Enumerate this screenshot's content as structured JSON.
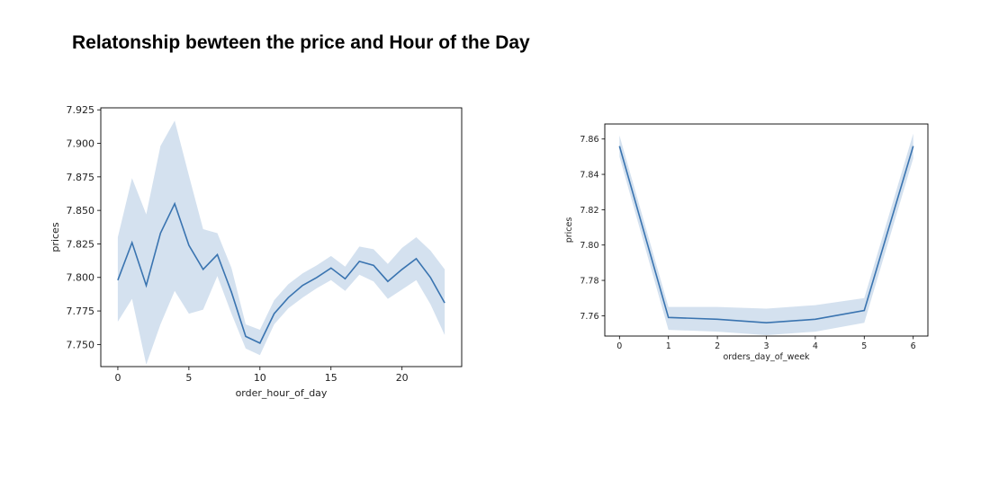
{
  "title": "Relatonship bewteen the price and Hour of the Day",
  "colors": {
    "line": "#3a74b0",
    "band": "#b7cde5"
  },
  "chart_data": [
    {
      "type": "line",
      "xlabel": "order_hour_of_day",
      "ylabel": "prices",
      "xlim": [
        -1.2,
        24.2
      ],
      "ylim": [
        7.7335,
        7.9265
      ],
      "xticks": [
        0,
        5,
        10,
        15,
        20
      ],
      "yticks": [
        7.75,
        7.775,
        7.8,
        7.825,
        7.85,
        7.875,
        7.9,
        7.925
      ],
      "ytick_labels": [
        "7.750",
        "7.775",
        "7.800",
        "7.825",
        "7.850",
        "7.875",
        "7.900",
        "7.925"
      ],
      "grid": false,
      "x": [
        0,
        1,
        2,
        3,
        4,
        5,
        6,
        7,
        8,
        9,
        10,
        11,
        12,
        13,
        14,
        15,
        16,
        17,
        18,
        19,
        20,
        21,
        22,
        23
      ],
      "y": [
        7.798,
        7.826,
        7.794,
        7.833,
        7.855,
        7.824,
        7.806,
        7.817,
        7.789,
        7.756,
        7.751,
        7.773,
        7.785,
        7.794,
        7.8,
        7.807,
        7.799,
        7.812,
        7.809,
        7.797,
        7.806,
        7.814,
        7.8,
        7.781
      ],
      "ci_upper": [
        7.83,
        7.874,
        7.847,
        7.898,
        7.917,
        7.876,
        7.836,
        7.833,
        7.807,
        7.765,
        7.761,
        7.783,
        7.795,
        7.803,
        7.809,
        7.816,
        7.808,
        7.823,
        7.821,
        7.81,
        7.822,
        7.83,
        7.82,
        7.806
      ],
      "ci_lower": [
        7.767,
        7.784,
        7.735,
        7.765,
        7.79,
        7.773,
        7.776,
        7.801,
        7.773,
        7.747,
        7.742,
        7.765,
        7.777,
        7.785,
        7.792,
        7.798,
        7.79,
        7.802,
        7.797,
        7.784,
        7.791,
        7.798,
        7.78,
        7.757
      ]
    },
    {
      "type": "line",
      "xlabel": "orders_day_of_week",
      "ylabel": "prices",
      "xlim": [
        -0.3,
        6.3
      ],
      "ylim": [
        7.7485,
        7.8685
      ],
      "xticks": [
        0,
        1,
        2,
        3,
        4,
        5,
        6
      ],
      "yticks": [
        7.76,
        7.78,
        7.8,
        7.82,
        7.84,
        7.86
      ],
      "ytick_labels": [
        "7.76",
        "7.78",
        "7.80",
        "7.82",
        "7.84",
        "7.86"
      ],
      "grid": false,
      "x": [
        0,
        1,
        2,
        3,
        4,
        5,
        6
      ],
      "y": [
        7.856,
        7.759,
        7.758,
        7.756,
        7.758,
        7.763,
        7.856
      ],
      "ci_upper": [
        7.862,
        7.765,
        7.765,
        7.764,
        7.766,
        7.77,
        7.863
      ],
      "ci_lower": [
        7.85,
        7.752,
        7.751,
        7.749,
        7.751,
        7.756,
        7.849
      ]
    }
  ]
}
